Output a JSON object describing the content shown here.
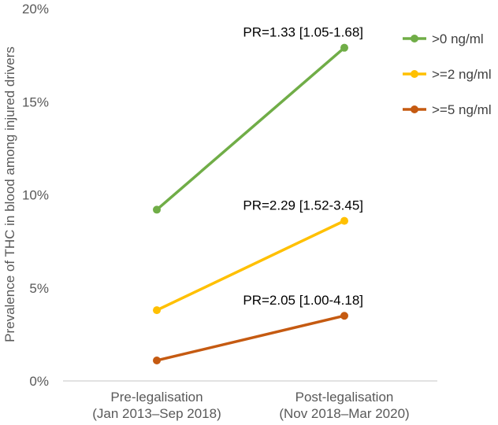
{
  "chart_data": {
    "type": "line",
    "title": "",
    "xlabel": "",
    "ylabel": "Prevalence of THC in blood among injured drivers",
    "categories": [
      [
        "Pre-legalisation",
        "(Jan 2013–Sep 2018)"
      ],
      [
        "Post-legalisation",
        "(Nov 2018–Mar 2020)"
      ]
    ],
    "ylim": [
      0,
      20
    ],
    "yticks": [
      "0%",
      "5%",
      "10%",
      "15%",
      "20%"
    ],
    "ytick_values": [
      0,
      5,
      10,
      15,
      20
    ],
    "grid": false,
    "legend_position": "top-right",
    "series": [
      {
        "name": ">0 ng/ml",
        "color": "#70ad47",
        "values": [
          9.2,
          17.9
        ],
        "annotation": "PR=1.33 [1.05-1.68]"
      },
      {
        "name": ">=2 ng/ml",
        "color": "#ffc000",
        "values": [
          3.8,
          8.6
        ],
        "annotation": "PR=2.29 [1.52-3.45]"
      },
      {
        "name": ">=5 ng/ml",
        "color": "#c55a11",
        "values": [
          1.1,
          3.5
        ],
        "annotation": "PR=2.05 [1.00-4.18]"
      }
    ]
  }
}
